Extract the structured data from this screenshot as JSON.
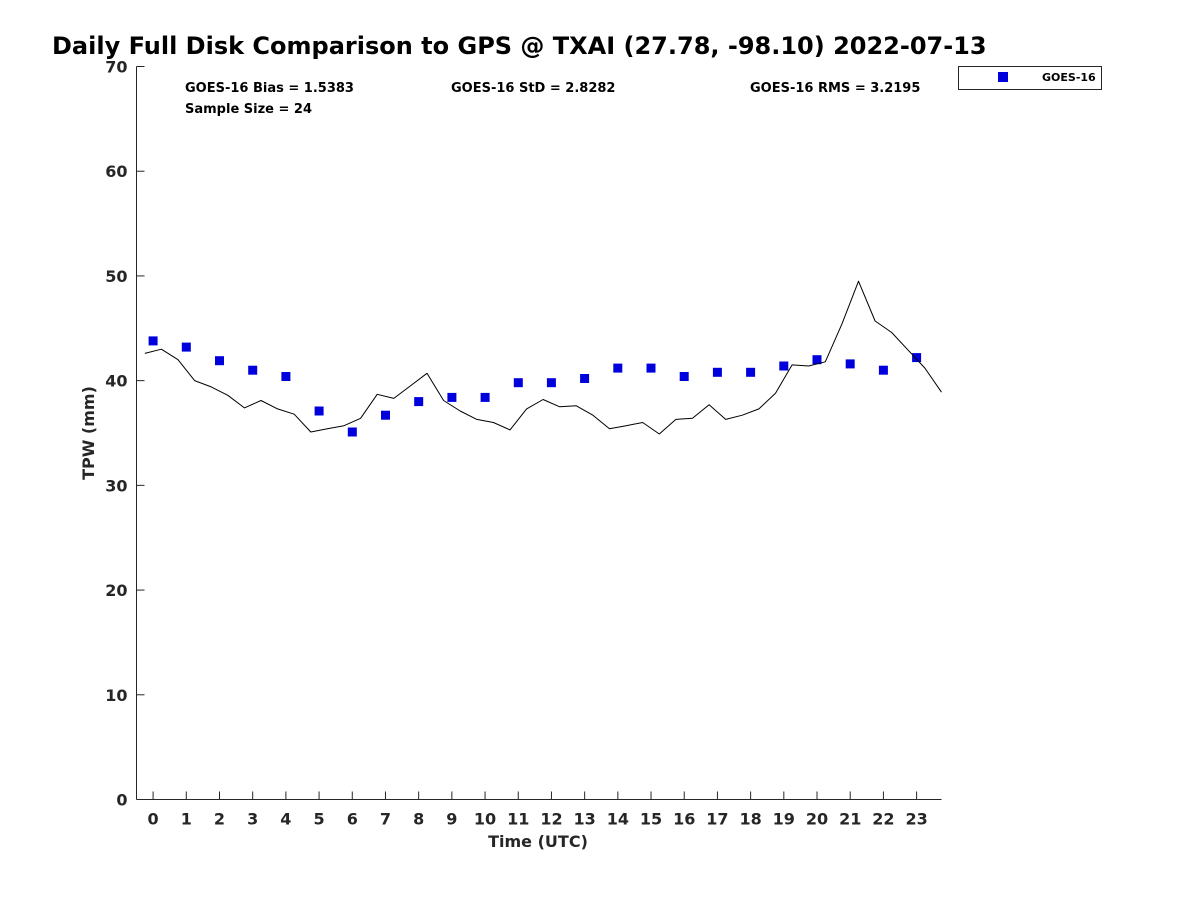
{
  "chart_data": {
    "type": "scatter",
    "title": "Daily Full Disk Comparison to GPS @ TXAI (27.78, -98.10) 2022-07-13",
    "xlabel": "Time (UTC)",
    "ylabel": "TPW (mm)",
    "xlim": [
      -0.5,
      23.75
    ],
    "ylim": [
      0,
      70
    ],
    "x_ticks": [
      0,
      1,
      2,
      3,
      4,
      5,
      6,
      7,
      8,
      9,
      10,
      11,
      12,
      13,
      14,
      15,
      16,
      17,
      18,
      19,
      20,
      21,
      22,
      23
    ],
    "x_tick_labels": [
      "0",
      "1",
      "2",
      "3",
      "4",
      "5",
      "6",
      "7",
      "8",
      "9",
      "10",
      "11",
      "12",
      "13",
      "14",
      "15",
      "16",
      "17",
      "18",
      "19",
      "20",
      "21",
      "22",
      "23"
    ],
    "y_ticks": [
      0,
      10,
      20,
      30,
      40,
      50,
      60,
      70
    ],
    "y_tick_labels": [
      "0",
      "10",
      "20",
      "30",
      "40",
      "50",
      "60",
      "70"
    ],
    "grid": false,
    "legend_position": "outside-top-right",
    "series": [
      {
        "name": "GOES-16",
        "kind": "scatter",
        "marker": "square",
        "color": "#0000dd",
        "x": [
          0,
          1,
          2,
          3,
          4,
          5,
          6,
          7,
          8,
          9,
          10,
          11,
          12,
          13,
          14,
          15,
          16,
          17,
          18,
          19,
          20,
          21,
          22,
          23
        ],
        "y": [
          43.8,
          43.2,
          41.9,
          41.0,
          40.4,
          37.1,
          35.1,
          36.7,
          38.0,
          38.4,
          38.4,
          39.8,
          39.8,
          40.2,
          41.2,
          41.2,
          40.4,
          40.8,
          40.8,
          41.4,
          42.0,
          41.6,
          41.0,
          42.2
        ]
      },
      {
        "kind": "line",
        "color": "#000000",
        "x": [
          -0.25,
          0.25,
          0.75,
          1.25,
          1.75,
          2.25,
          2.75,
          3.25,
          3.75,
          4.25,
          4.75,
          5.25,
          5.75,
          6.25,
          6.75,
          7.25,
          7.75,
          8.25,
          8.75,
          9.25,
          9.75,
          10.25,
          10.75,
          11.25,
          11.75,
          12.25,
          12.75,
          13.25,
          13.75,
          14.25,
          14.75,
          15.25,
          15.75,
          16.25,
          16.75,
          17.25,
          17.75,
          18.25,
          18.75,
          19.25,
          19.75,
          20.25,
          20.75,
          21.25,
          21.75,
          22.25,
          22.75,
          23.25,
          23.75
        ],
        "y": [
          42.6,
          43.0,
          42.0,
          40.0,
          39.4,
          38.6,
          37.4,
          38.1,
          37.3,
          36.8,
          35.1,
          35.4,
          35.7,
          36.4,
          38.7,
          38.3,
          39.5,
          40.7,
          38.1,
          37.1,
          36.3,
          36.0,
          35.3,
          37.3,
          38.2,
          37.5,
          37.6,
          36.7,
          35.4,
          35.7,
          36.0,
          34.9,
          36.3,
          36.4,
          37.7,
          36.3,
          36.7,
          37.3,
          38.8,
          41.5,
          41.4,
          41.8,
          45.4,
          49.5,
          45.7,
          44.6,
          42.9,
          41.2,
          38.9
        ]
      }
    ],
    "annotations": [
      {
        "text": "GOES-16 Bias = 1.5383"
      },
      {
        "text": "Sample Size = 24"
      },
      {
        "text": "GOES-16 StD = 2.8282"
      },
      {
        "text": "GOES-16 RMS = 3.2195"
      }
    ]
  }
}
